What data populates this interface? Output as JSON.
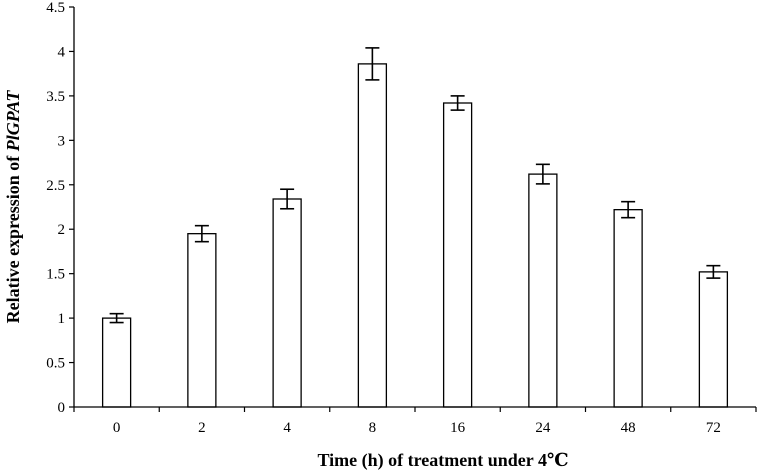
{
  "chart_data": {
    "type": "bar",
    "categories": [
      "0",
      "2",
      "4",
      "8",
      "16",
      "24",
      "48",
      "72"
    ],
    "values": [
      1.0,
      1.95,
      2.34,
      3.86,
      3.42,
      2.62,
      2.22,
      1.52
    ],
    "errors": [
      0.05,
      0.09,
      0.11,
      0.18,
      0.08,
      0.11,
      0.09,
      0.07
    ],
    "title": "",
    "xlabel": "Time (h) of treatment under 4℃",
    "ylabel_prefix": "Relative expression of ",
    "ylabel_gene": "PlGPAT",
    "ylim": [
      0,
      4.5
    ],
    "yticks": [
      "0",
      "0.5",
      "1",
      "1.5",
      "2",
      "2.5",
      "3",
      "3.5",
      "4",
      "4.5"
    ],
    "grid": false,
    "legend": "none",
    "bar_fill": "#ffffff",
    "bar_stroke": "#000000"
  }
}
